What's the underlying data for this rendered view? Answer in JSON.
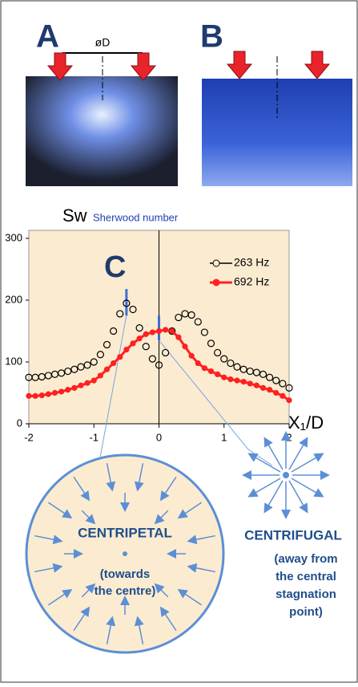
{
  "panels": {
    "a": {
      "label": "A",
      "diameter": "øD"
    },
    "b": {
      "label": "B"
    }
  },
  "chart_data": {
    "type": "scatter",
    "panel_label": "C",
    "ylabel": "Sw",
    "ylabel_note": "Sherwood number",
    "xlabel": "X₁/D",
    "x": [
      -2,
      -1.9,
      -1.8,
      -1.7,
      -1.6,
      -1.5,
      -1.4,
      -1.3,
      -1.2,
      -1.1,
      -1,
      -0.9,
      -0.8,
      -0.7,
      -0.6,
      -0.5,
      -0.4,
      -0.3,
      -0.2,
      -0.1,
      0,
      0.1,
      0.2,
      0.3,
      0.4,
      0.5,
      0.6,
      0.7,
      0.8,
      0.9,
      1,
      1.1,
      1.2,
      1.3,
      1.4,
      1.5,
      1.6,
      1.7,
      1.8,
      1.9,
      2
    ],
    "series": [
      {
        "name": "263 Hz",
        "color": "#000000",
        "values": [
          75,
          75,
          76,
          78,
          80,
          82,
          85,
          88,
          92,
          95,
          100,
          112,
          128,
          150,
          178,
          195,
          185,
          155,
          125,
          105,
          95,
          115,
          150,
          172,
          178,
          176,
          165,
          148,
          130,
          115,
          105,
          98,
          92,
          88,
          85,
          83,
          80,
          75,
          70,
          65,
          58
        ]
      },
      {
        "name": "692 Hz",
        "color": "#ff2020",
        "values": [
          45,
          45,
          46,
          48,
          50,
          52,
          55,
          58,
          62,
          66,
          70,
          78,
          88,
          98,
          108,
          120,
          130,
          138,
          145,
          148,
          150,
          152,
          150,
          140,
          125,
          110,
          98,
          90,
          85,
          80,
          75,
          72,
          70,
          68,
          65,
          62,
          58,
          55,
          50,
          45,
          38
        ]
      }
    ],
    "xlim": [
      -2,
      2
    ],
    "ylim": [
      0,
      300
    ],
    "xticks": [
      -2,
      -1,
      0,
      1,
      2
    ],
    "yticks": [
      0,
      100,
      200,
      300
    ],
    "grid": false
  },
  "diagram": {
    "centripetal": {
      "title": "CENTRIPETAL",
      "note": [
        "(towards",
        "the centre)"
      ]
    },
    "centrifugal": {
      "title": "CENTRIFUGAL",
      "note": [
        "(away from",
        "the central",
        "stagnation",
        "point)"
      ]
    }
  }
}
